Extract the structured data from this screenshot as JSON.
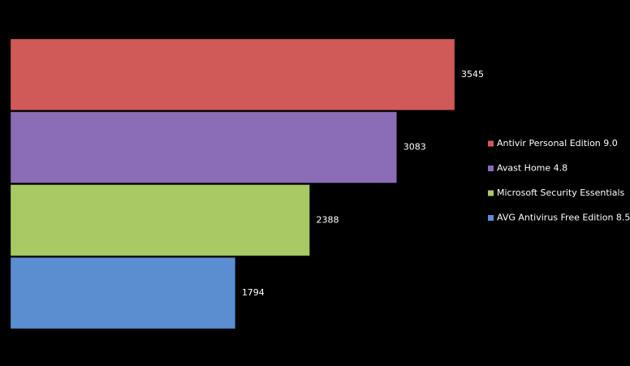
{
  "chart_data": {
    "type": "bar",
    "orientation": "horizontal",
    "legend": "right",
    "series": [
      {
        "name": "Antivir Personal Edition 9.0",
        "color": "#d05a57",
        "values": [
          3545
        ]
      },
      {
        "name": "Avast Home 4.8",
        "color": "#8a6db4",
        "values": [
          3083
        ]
      },
      {
        "name": "Microsoft Security Essentials",
        "color": "#a8c963",
        "values": [
          2388
        ]
      },
      {
        "name": "AVG Antivirus Free Edition 8.5",
        "color": "#5a8ed0",
        "values": [
          1794
        ]
      }
    ]
  }
}
